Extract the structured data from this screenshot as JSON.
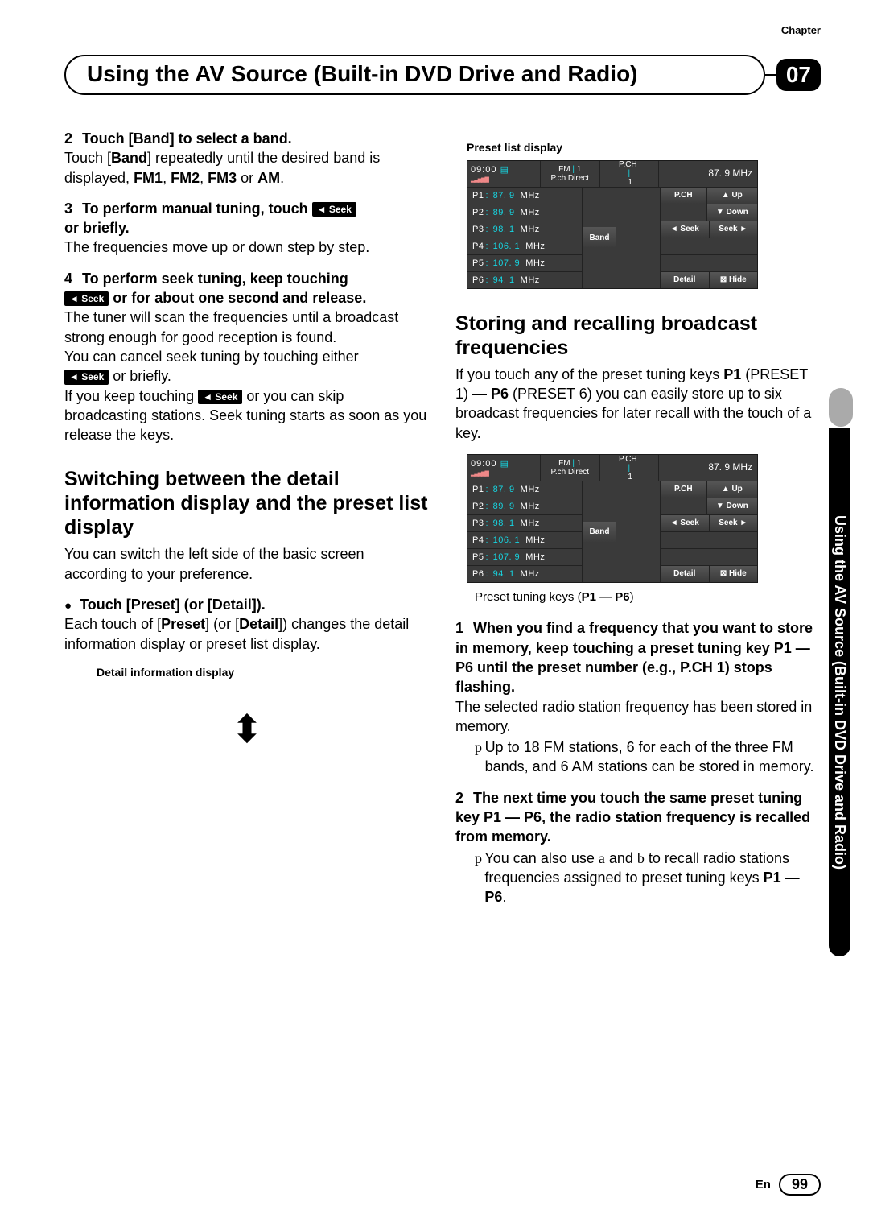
{
  "header": {
    "chapter_word": "Chapter",
    "title": "Using the AV Source (Built-in DVD Drive and Radio)",
    "chapter_num": "07"
  },
  "side_tab": "Using the AV Source (Built-in DVD Drive and Radio)",
  "seek_badge": "◄ Seek",
  "left": {
    "s2_head_num": "2",
    "s2_head": "Touch [Band] to select a band.",
    "s2_body_a": "Touch [",
    "s2_body_b": "Band",
    "s2_body_c": "] repeatedly until the desired band is displayed, ",
    "s2_body_d": "FM1",
    "s2_body_e": ", ",
    "s2_body_f": "FM2",
    "s2_body_g": ", ",
    "s2_body_h": "FM3",
    "s2_body_i": " or ",
    "s2_body_j": "AM",
    "s2_body_k": ".",
    "s3_head_num": "3",
    "s3_head_a": "To perform manual tuning, touch ",
    "s3_head_b": " or            briefly.",
    "s3_body": "The frequencies move up or down step by step.",
    "s4_head_num": "4",
    "s4_head_a": "To perform seek tuning, keep touching ",
    "s4_head_b": " or            for about one second and release.",
    "s4_body1": "The tuner will scan the frequencies until a broadcast strong enough for good reception is found.",
    "s4_body2_a": "You can cancel seek tuning by touching either ",
    "s4_body2_b": " or            briefly.",
    "s4_body3_a": "If you keep touching ",
    "s4_body3_b": " or            you can skip broadcasting stations. Seek tuning starts as soon as you release the keys.",
    "h2_switch": "Switching between the detail information display and the preset list display",
    "switch_body": "You can switch the left side of the basic screen according to your preference.",
    "bullet_head": "Touch [Preset] (or [Detail]).",
    "bullet_body_a": "Each touch of [",
    "bullet_body_b": "Preset",
    "bullet_body_c": "] (or [",
    "bullet_body_d": "Detail",
    "bullet_body_e": "]) changes the detail information display or preset list display.",
    "fig1_cap": "Detail information display"
  },
  "right": {
    "fig2_cap": "Preset list display",
    "h2_store": "Storing and recalling broadcast frequencies",
    "store_body_a": "If you touch any of the preset tuning keys ",
    "store_body_b": "P1",
    "store_body_c": " (PRESET 1) — ",
    "store_body_d": "P6",
    "store_body_e": " (PRESET 6) you can easily store up to six broadcast frequencies for later recall with the touch of a key.",
    "fig3_cap_a": "Preset tuning keys (",
    "fig3_cap_b": "P1",
    "fig3_cap_c": " — ",
    "fig3_cap_d": "P6",
    "fig3_cap_e": ")",
    "s1_head_num": "1",
    "s1_head": "When you find a frequency that you want to store in memory, keep touching a preset tuning key P1 — P6 until the preset number (e.g., P.CH 1) stops flashing.",
    "s1_body": "The selected radio station frequency has been stored in memory.",
    "s1_note": "Up to 18 FM stations, 6 for each of the three FM bands, and 6 AM stations can be stored in memory.",
    "s2b_head_num": "2",
    "s2b_head": "The next time you touch the same preset tuning key P1 — P6, the radio station frequency is recalled from memory.",
    "s2b_note_a": "You can also use ",
    "s2b_note_b": "a",
    "s2b_note_c": " and ",
    "s2b_note_d": "b",
    "s2b_note_e": " to recall radio stations frequencies assigned to preset tuning keys ",
    "s2b_note_f": "P1",
    "s2b_note_g": " — ",
    "s2b_note_h": "P6",
    "s2b_note_i": "."
  },
  "screen": {
    "clock": "09:00",
    "fm_label": "FM",
    "fm_num": "1",
    "pch_dir": "P.ch Direct",
    "pch": "P.CH",
    "pch_num": "1",
    "freq": "87. 9 MHz",
    "presets": [
      {
        "p": "P1",
        "v": "87. 9",
        "u": "MHz"
      },
      {
        "p": "P2",
        "v": "89. 9",
        "u": "MHz"
      },
      {
        "p": "P3",
        "v": "98. 1",
        "u": "MHz"
      },
      {
        "p": "P4",
        "v": "106. 1",
        "u": "MHz"
      },
      {
        "p": "P5",
        "v": "107. 9",
        "u": "MHz"
      },
      {
        "p": "P6",
        "v": "94. 1",
        "u": "MHz"
      }
    ],
    "btn_pch": "P.CH",
    "btn_up": "▲ Up",
    "btn_down": "▼ Down",
    "btn_band": "Band",
    "btn_seek_l": "◄ Seek",
    "btn_seek_r": "Seek ►",
    "btn_detail": "Detail",
    "btn_hide": "⊠ Hide"
  },
  "footer": {
    "lang": "En",
    "page": "99"
  }
}
